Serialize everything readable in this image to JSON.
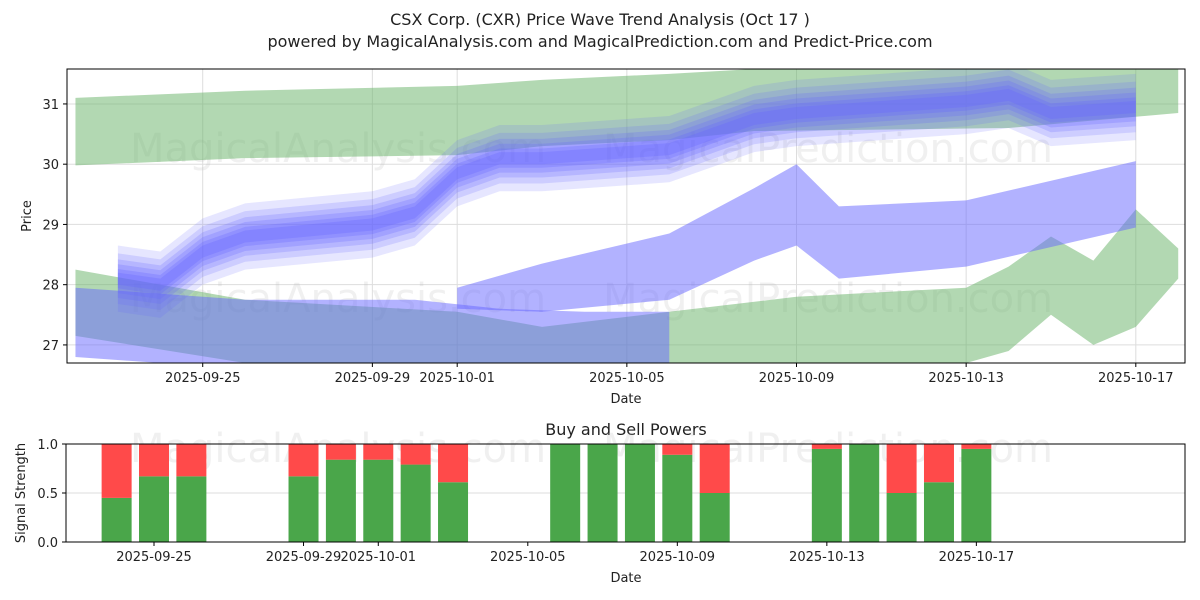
{
  "title": "CSX Corp. (CXR) Price Wave Trend Analysis (Oct 17 )",
  "subtitle": "powered by MagicalAnalysis.com and MagicalPrediction.com and Predict-Price.com",
  "watermarks": [
    "MagicalAnalysis.com",
    "MagicalPrediction.com"
  ],
  "colors": {
    "buy": "#4aa64a",
    "sell": "#ff4a4a",
    "wave": "#6666ff",
    "band_green": "#66b266",
    "band_blue": "#6666ff"
  },
  "chart_data": [
    {
      "type": "area",
      "title": "",
      "xlabel": "Date",
      "ylabel": "Price",
      "ylim": [
        26.7,
        31.58
      ],
      "xlim_days_from_2025_09_25": [
        -3.2,
        23.16
      ],
      "yticks": [
        27,
        28,
        29,
        30,
        31
      ],
      "xticks": [
        "2025-09-25",
        "2025-09-29",
        "2025-10-01",
        "2025-10-05",
        "2025-10-09",
        "2025-10-13",
        "2025-10-17"
      ],
      "grid": true,
      "center_wave": {
        "name": "Price wave",
        "x": [
          "2025-09-23",
          "2025-09-24",
          "2025-09-25",
          "2025-09-26",
          "2025-09-29",
          "2025-09-30",
          "2025-10-01",
          "2025-10-02",
          "2025-10-03",
          "2025-10-06",
          "2025-10-07",
          "2025-10-08",
          "2025-10-09",
          "2025-10-10",
          "2025-10-13",
          "2025-10-14",
          "2025-10-15",
          "2025-10-16",
          "2025-10-17"
        ],
        "values": [
          28.1,
          28.0,
          28.55,
          28.8,
          29.0,
          29.2,
          29.85,
          30.1,
          30.1,
          30.25,
          30.5,
          30.75,
          30.85,
          30.9,
          31.05,
          31.15,
          30.85,
          30.9,
          30.95
        ]
      },
      "bands": [
        {
          "name": "upper-green-band",
          "color": "green",
          "x": [
            "2025-09-22",
            "2025-09-26",
            "2025-10-01",
            "2025-10-03",
            "2025-10-06",
            "2025-10-08",
            "2025-10-14",
            "2025-10-18"
          ],
          "upper": [
            31.1,
            31.22,
            31.3,
            31.4,
            31.5,
            31.6,
            31.6,
            31.6
          ],
          "lower": [
            29.98,
            30.1,
            30.15,
            30.3,
            30.4,
            30.55,
            30.6,
            30.85
          ]
        },
        {
          "name": "lower-green-band",
          "color": "green",
          "x": [
            "2025-09-22",
            "2025-09-26",
            "2025-10-01",
            "2025-10-03",
            "2025-10-06",
            "2025-10-09",
            "2025-10-13",
            "2025-10-14",
            "2025-10-15",
            "2025-10-16",
            "2025-10-17",
            "2025-10-18"
          ],
          "upper": [
            28.25,
            27.75,
            27.55,
            27.3,
            27.55,
            27.8,
            27.95,
            28.3,
            28.8,
            28.4,
            29.25,
            28.6
          ],
          "lower": [
            27.15,
            26.7,
            26.7,
            26.7,
            26.7,
            26.7,
            26.7,
            26.9,
            27.5,
            27.0,
            27.3,
            28.1
          ]
        },
        {
          "name": "middle-blue-band",
          "color": "blue",
          "x": [
            "2025-10-01",
            "2025-10-03",
            "2025-10-06",
            "2025-10-08",
            "2025-10-09",
            "2025-10-10",
            "2025-10-13",
            "2025-10-17"
          ],
          "upper": [
            27.95,
            28.35,
            28.85,
            29.6,
            30.0,
            29.3,
            29.4,
            30.05
          ],
          "lower": [
            27.6,
            27.55,
            27.75,
            28.4,
            28.65,
            28.1,
            28.3,
            28.95
          ]
        },
        {
          "name": "lower-blue-band",
          "color": "blue",
          "x": [
            "2025-09-22",
            "2025-09-26",
            "2025-09-30",
            "2025-10-02",
            "2025-10-04",
            "2025-10-06"
          ],
          "upper": [
            27.95,
            27.75,
            27.75,
            27.6,
            27.55,
            27.55
          ],
          "lower": [
            26.8,
            26.6,
            26.6,
            26.6,
            26.6,
            26.6
          ]
        }
      ]
    },
    {
      "type": "bar",
      "title": "Buy and Sell Powers",
      "xlabel": "Date",
      "ylabel": "Signal Strength",
      "ylim": [
        0,
        1
      ],
      "yticks": [
        "0.0",
        "0.5",
        "1.0"
      ],
      "xticks": [
        "2025-09-25",
        "2025-09-29",
        "2025-10-01",
        "2025-10-05",
        "2025-10-09",
        "2025-10-13",
        "2025-10-17"
      ],
      "grid": true,
      "categories": [
        "2025-09-24",
        "2025-09-25",
        "2025-09-26",
        "2025-09-29",
        "2025-09-30",
        "2025-10-01",
        "2025-10-02",
        "2025-10-03",
        "2025-10-06",
        "2025-10-07",
        "2025-10-08",
        "2025-10-09",
        "2025-10-10",
        "2025-10-13",
        "2025-10-14",
        "2025-10-15",
        "2025-10-16",
        "2025-10-17"
      ],
      "series": [
        {
          "name": "Buy",
          "values": [
            0.45,
            0.67,
            0.67,
            0.67,
            0.84,
            0.84,
            0.79,
            0.61,
            1.0,
            1.0,
            1.0,
            0.89,
            0.5,
            0.95,
            1.0,
            0.5,
            0.61,
            0.95
          ]
        },
        {
          "name": "Sell",
          "values": [
            0.55,
            0.33,
            0.33,
            0.33,
            0.16,
            0.16,
            0.21,
            0.39,
            0.0,
            0.0,
            0.0,
            0.11,
            0.5,
            0.05,
            0.0,
            0.5,
            0.39,
            0.05
          ]
        }
      ]
    }
  ]
}
